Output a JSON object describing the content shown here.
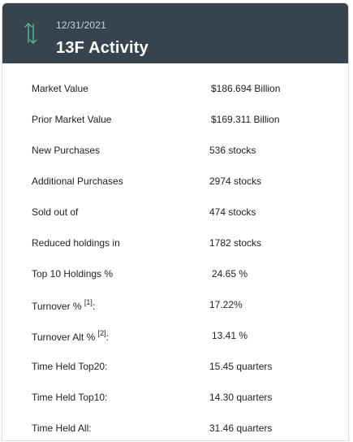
{
  "header": {
    "date": "12/31/2021",
    "title": "13F Activity",
    "icon": "up-down-arrows-icon",
    "background_color": "#37434f",
    "icon_color": "#4fbf8f"
  },
  "rows": [
    {
      "label": "Market Value",
      "value": "$186.694 Billion"
    },
    {
      "label": "Prior Market Value",
      "value": "$169.311 Billion"
    },
    {
      "label": "New Purchases",
      "value": "536 stocks"
    },
    {
      "label": "Additional Purchases",
      "value": "2974 stocks"
    },
    {
      "label": "Sold out of",
      "value": "474 stocks"
    },
    {
      "label": "Reduced holdings in",
      "value": "1782 stocks"
    },
    {
      "label": "Top 10 Holdings %",
      "value": "24.65 %"
    },
    {
      "label": "Turnover %",
      "footnote": "[1]",
      "suffix": ":",
      "value": "17.22%"
    },
    {
      "label": "Turnover Alt %",
      "footnote": "[2]",
      "suffix": ":",
      "value": "13.41 %"
    },
    {
      "label": "Time Held Top20:",
      "value": "15.45 quarters"
    },
    {
      "label": "Time Held Top10:",
      "value": "14.30 quarters"
    },
    {
      "label": "Time Held All:",
      "value": "31.46 quarters"
    }
  ]
}
